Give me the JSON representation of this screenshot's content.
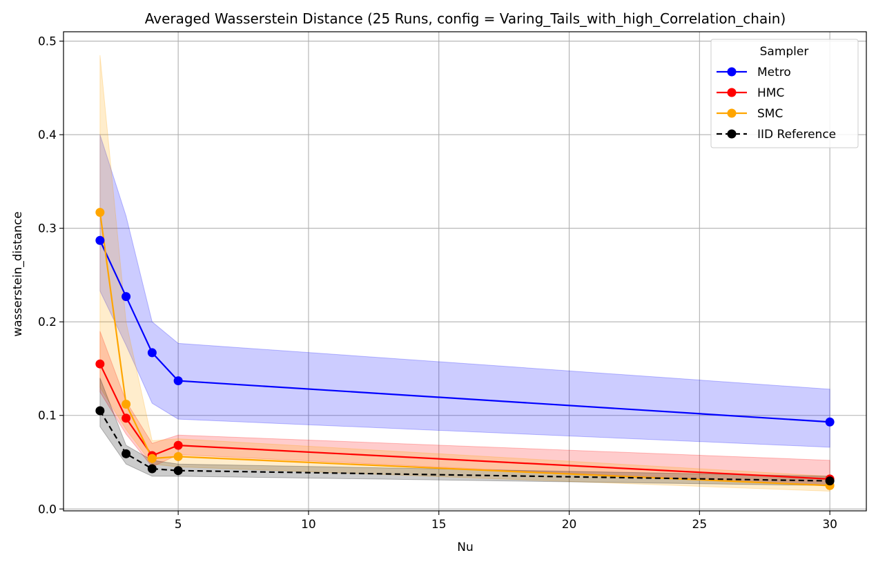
{
  "chart_data": {
    "type": "line",
    "title": "Averaged Wasserstein Distance (25 Runs, config = Varing_Tails_with_high_Correlation_chain)",
    "xlabel": "Nu",
    "ylabel": "wasserstein_distance",
    "x": [
      2,
      3,
      4,
      5,
      30
    ],
    "xlim": [
      0.6,
      31.4
    ],
    "ylim": [
      -0.002,
      0.51
    ],
    "xticks": [
      5,
      10,
      15,
      20,
      25,
      30
    ],
    "xtick_labels": [
      "5",
      "10",
      "15",
      "20",
      "25",
      "30"
    ],
    "yticks": [
      0.0,
      0.1,
      0.2,
      0.3,
      0.4,
      0.5
    ],
    "ytick_labels": [
      "0.0",
      "0.1",
      "0.2",
      "0.3",
      "0.4",
      "0.5"
    ],
    "grid": true,
    "legend": {
      "title": "Sampler",
      "position": "top-right",
      "entries": [
        "Metro",
        "HMC",
        "SMC",
        "IID Reference"
      ]
    },
    "series": [
      {
        "name": "Metro",
        "color": "#0000ff",
        "dashed": false,
        "values": [
          0.287,
          0.227,
          0.167,
          0.137,
          0.093
        ],
        "band_low": [
          0.233,
          0.175,
          0.113,
          0.096,
          0.066
        ],
        "band_high": [
          0.4,
          0.313,
          0.2,
          0.177,
          0.128
        ]
      },
      {
        "name": "HMC",
        "color": "#ff0000",
        "dashed": false,
        "values": [
          0.155,
          0.097,
          0.057,
          0.068,
          0.032
        ],
        "band_low": [
          0.125,
          0.08,
          0.045,
          0.058,
          0.025
        ],
        "band_high": [
          0.19,
          0.115,
          0.07,
          0.079,
          0.052
        ]
      },
      {
        "name": "SMC",
        "color": "#ffa500",
        "dashed": false,
        "values": [
          0.317,
          0.112,
          0.054,
          0.056,
          0.025
        ],
        "band_low": [
          0.13,
          0.085,
          0.048,
          0.045,
          0.019
        ],
        "band_high": [
          0.485,
          0.2,
          0.073,
          0.075,
          0.035
        ]
      },
      {
        "name": "IID Reference",
        "color": "#000000",
        "dashed": true,
        "values": [
          0.105,
          0.059,
          0.043,
          0.041,
          0.03
        ],
        "band_low": [
          0.088,
          0.048,
          0.035,
          0.035,
          0.025
        ],
        "band_high": [
          0.14,
          0.068,
          0.052,
          0.048,
          0.035
        ]
      }
    ]
  }
}
